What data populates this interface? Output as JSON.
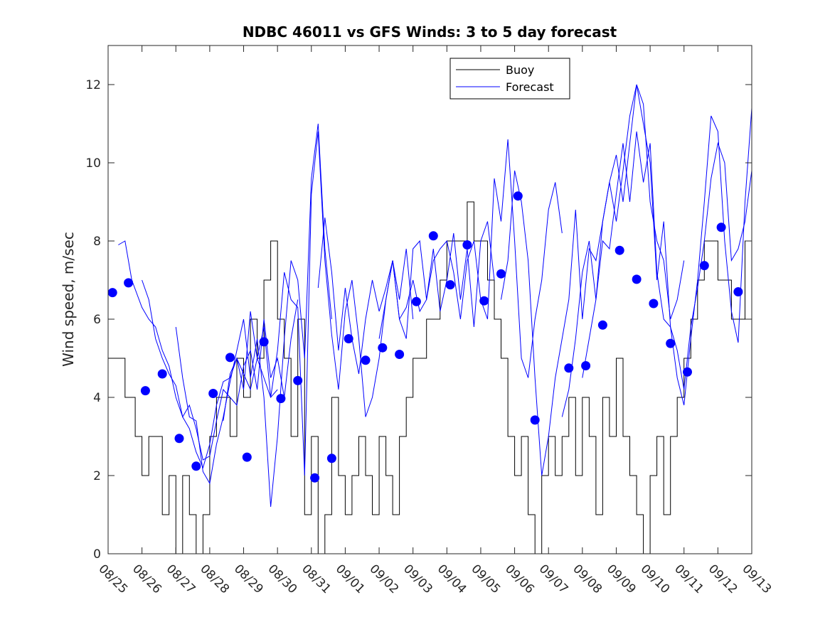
{
  "chart_data": {
    "type": "line",
    "title": "NDBC 46011 vs GFS Winds: 3 to 5 day forecast",
    "xlabel": "",
    "ylabel": "Wind speed, m/sec",
    "xlim": [
      0,
      19
    ],
    "ylim": [
      0,
      13
    ],
    "x_tick_labels": [
      "08/25",
      "08/26",
      "08/27",
      "08/28",
      "08/29",
      "08/30",
      "08/31",
      "09/01",
      "09/02",
      "09/03",
      "09/04",
      "09/05",
      "09/06",
      "09/07",
      "09/08",
      "09/09",
      "09/10",
      "09/11",
      "09/12",
      "09/13"
    ],
    "y_ticks": [
      0,
      2,
      4,
      6,
      8,
      10,
      12
    ],
    "legend": [
      {
        "label": "Buoy",
        "color": "#000000"
      },
      {
        "label": "Forecast",
        "color": "#0000ff"
      }
    ],
    "legend_position": "top",
    "buoy": {
      "name": "Buoy",
      "color": "#000000",
      "x": [
        0,
        0.3,
        0.5,
        0.8,
        1.0,
        1.2,
        1.4,
        1.6,
        1.8,
        2.0,
        2.2,
        2.4,
        2.6,
        2.8,
        3.0,
        3.2,
        3.4,
        3.6,
        3.8,
        4.0,
        4.2,
        4.4,
        4.6,
        4.8,
        5.0,
        5.2,
        5.4,
        5.6,
        5.8,
        6.0,
        6.2,
        6.4,
        6.6,
        6.8,
        7.0,
        7.2,
        7.4,
        7.6,
        7.8,
        8.0,
        8.2,
        8.4,
        8.6,
        8.8,
        9.0,
        9.2,
        9.4,
        9.6,
        9.8,
        10.0,
        10.2,
        10.4,
        10.6,
        10.8,
        11.0,
        11.2,
        11.4,
        11.6,
        11.8,
        12.0,
        12.2,
        12.4,
        12.6,
        12.8,
        13.0,
        13.2,
        13.4,
        13.6,
        13.8,
        14.0,
        14.2,
        14.4,
        14.6,
        14.8,
        15.0,
        15.2,
        15.4,
        15.6,
        15.8,
        16.0,
        16.2,
        16.4,
        16.6,
        16.8,
        17.0,
        17.2,
        17.4,
        17.6,
        17.8,
        18.0,
        18.2,
        18.4,
        18.6,
        18.8,
        19.0
      ],
      "values": [
        5,
        5,
        4,
        3,
        2,
        3,
        3,
        1,
        2,
        0,
        2,
        1,
        0,
        1,
        3,
        4,
        4,
        3,
        5,
        4,
        6,
        5,
        7,
        8,
        6,
        5,
        3,
        6,
        1,
        3,
        0,
        1,
        4,
        2,
        1,
        2,
        3,
        2,
        1,
        3,
        2,
        1,
        3,
        4,
        5,
        5,
        6,
        6,
        7,
        8,
        8,
        8,
        9,
        8,
        8,
        7,
        6,
        5,
        3,
        2,
        3,
        1,
        0,
        2,
        3,
        2,
        3,
        4,
        2,
        4,
        3,
        1,
        4,
        3,
        5,
        3,
        2,
        1,
        0,
        2,
        3,
        1,
        3,
        4,
        5,
        6,
        7,
        8,
        8,
        7,
        7,
        6,
        6,
        8,
        9
      ]
    },
    "forecast": {
      "name": "Forecast",
      "color": "#0000ff",
      "series": [
        {
          "x": [
            0.3,
            0.5,
            0.7,
            1.0,
            1.2,
            1.4,
            1.6,
            1.8,
            2.0,
            2.2,
            2.4,
            2.6,
            2.8,
            3.0,
            3.2,
            3.4,
            3.6,
            3.8,
            4.0,
            4.2,
            4.4,
            4.6,
            4.8,
            5.0
          ],
          "values": [
            7.9,
            8.0,
            7.0,
            6.3,
            6.0,
            5.8,
            5.2,
            4.8,
            4.0,
            3.5,
            3.2,
            2.6,
            2.2,
            2.8,
            3.8,
            4.4,
            4.5,
            5.0,
            4.6,
            4.2,
            5.0,
            4.5,
            4.0,
            4.2
          ]
        },
        {
          "x": [
            1.0,
            1.2,
            1.4,
            1.6,
            1.8,
            2.0,
            2.2,
            2.4,
            2.6,
            2.8,
            3.0,
            3.2,
            3.4,
            3.6,
            3.8,
            4.0,
            4.2,
            4.4,
            4.6,
            4.8,
            5.0,
            5.2,
            5.4,
            5.6
          ],
          "values": [
            7.0,
            6.5,
            5.5,
            5.0,
            4.6,
            4.3,
            3.5,
            3.8,
            3.2,
            2.4,
            2.5,
            3.4,
            4.2,
            4.0,
            3.8,
            4.8,
            5.2,
            4.2,
            6.0,
            4.5,
            5.0,
            4.0,
            5.5,
            6.5
          ]
        },
        {
          "x": [
            2.0,
            2.2,
            2.4,
            2.6,
            2.8,
            3.0,
            3.2,
            3.4,
            3.6,
            3.8,
            4.0,
            4.2,
            4.4,
            4.6,
            4.8,
            5.0,
            5.2,
            5.4,
            5.6,
            5.8,
            6.0,
            6.2,
            6.4,
            6.6
          ],
          "values": [
            5.8,
            4.5,
            3.5,
            3.4,
            2.1,
            1.8,
            2.8,
            3.5,
            4.4,
            5.2,
            6.0,
            4.5,
            5.5,
            4.0,
            1.2,
            3.0,
            5.5,
            7.5,
            7.0,
            5.0,
            9.6,
            11.0,
            7.8,
            6.0
          ]
        },
        {
          "x": [
            3.4,
            3.6,
            3.8,
            4.0,
            4.2,
            4.4,
            4.6,
            4.8,
            5.0,
            5.2,
            5.4,
            5.6,
            5.8,
            6.0,
            6.2,
            6.4,
            6.6,
            6.8,
            7.0,
            7.2,
            7.4,
            7.6,
            7.8,
            8.0,
            8.2,
            8.4,
            8.6,
            8.8,
            9.0
          ],
          "values": [
            3.4,
            4.6,
            5.0,
            4.2,
            6.2,
            5.0,
            5.8,
            4.0,
            5.2,
            7.2,
            6.5,
            6.3,
            2.0,
            9.2,
            10.8,
            7.5,
            5.6,
            4.2,
            6.2,
            7.0,
            5.5,
            3.5,
            4.0,
            5.0,
            6.5,
            7.5,
            6.5,
            7.8,
            6.0
          ]
        },
        {
          "x": [
            6.2,
            6.4,
            6.6,
            6.8,
            7.0,
            7.2,
            7.4,
            7.6,
            7.8,
            8.0,
            8.2,
            8.4,
            8.6,
            8.8,
            9.0,
            9.2,
            9.4,
            9.6,
            9.8,
            10.0,
            10.2,
            10.4,
            10.6,
            10.8,
            11.0,
            11.2,
            11.4
          ],
          "values": [
            6.8,
            8.6,
            7.2,
            5.2,
            6.8,
            5.5,
            4.6,
            6.0,
            7.0,
            6.2,
            6.8,
            7.5,
            6.0,
            5.5,
            7.8,
            8.0,
            6.5,
            7.8,
            6.2,
            7.0,
            8.2,
            6.5,
            7.8,
            5.8,
            8.0,
            8.5,
            7.0
          ]
        },
        {
          "x": [
            8.0,
            8.2,
            8.4,
            8.6,
            8.8,
            9.0,
            9.2,
            9.4,
            9.6,
            9.8,
            10.0,
            10.2,
            10.4,
            10.6,
            10.8,
            11.0,
            11.2,
            11.4,
            11.6,
            11.8,
            12.0,
            12.2,
            12.4,
            12.6,
            12.8,
            13.0,
            13.2,
            13.4
          ],
          "values": [
            5.5,
            6.5,
            7.5,
            6.0,
            6.3,
            7.0,
            6.2,
            6.5,
            7.5,
            7.8,
            8.0,
            7.2,
            6.0,
            7.5,
            8.0,
            6.5,
            6.0,
            9.6,
            8.5,
            10.6,
            8.0,
            5.0,
            4.5,
            6.0,
            7.0,
            8.8,
            9.5,
            8.2
          ]
        },
        {
          "x": [
            11.6,
            11.8,
            12.0,
            12.2,
            12.4,
            12.6,
            12.8,
            13.0,
            13.2,
            13.4,
            13.6,
            13.8,
            14.0,
            14.2,
            14.4,
            14.6,
            14.8,
            15.0,
            15.2,
            15.4,
            15.6,
            15.8,
            16.0,
            16.2,
            16.4,
            16.6,
            16.8,
            17.0
          ],
          "values": [
            6.5,
            7.5,
            9.8,
            9.0,
            7.5,
            4.5,
            2.0,
            3.0,
            4.5,
            5.5,
            6.5,
            8.8,
            6.0,
            7.8,
            7.5,
            8.5,
            9.5,
            10.2,
            9.0,
            10.5,
            12.0,
            11.5,
            9.0,
            8.0,
            7.5,
            6.0,
            6.5,
            7.5
          ]
        },
        {
          "x": [
            13.4,
            13.6,
            13.8,
            14.0,
            14.2,
            14.4,
            14.6,
            14.8,
            15.0,
            15.2,
            15.4,
            15.6,
            15.8,
            16.0,
            16.2,
            16.4,
            16.6,
            16.8,
            17.0,
            17.2,
            17.4,
            17.6,
            17.8,
            18.0,
            18.2,
            18.4,
            18.6,
            18.8,
            19.0
          ],
          "values": [
            3.5,
            4.2,
            5.5,
            7.2,
            8.0,
            6.5,
            8.5,
            9.5,
            8.5,
            9.8,
            11.2,
            12.0,
            11.0,
            10.0,
            7.0,
            8.5,
            5.8,
            4.5,
            3.8,
            5.5,
            7.0,
            9.0,
            11.2,
            10.8,
            8.0,
            6.2,
            5.4,
            9.0,
            11.4
          ]
        },
        {
          "x": [
            14.0,
            14.2,
            14.4,
            14.6,
            14.8,
            15.0,
            15.2,
            15.4,
            15.6,
            15.8,
            16.0,
            16.2,
            16.4,
            16.6,
            16.8,
            17.0,
            17.2,
            17.4,
            17.6,
            17.8,
            18.0,
            18.2,
            18.4,
            18.6,
            18.8,
            19.0
          ],
          "values": [
            4.5,
            5.5,
            6.5,
            8.0,
            7.8,
            9.2,
            10.5,
            9.0,
            10.8,
            9.5,
            10.5,
            7.2,
            6.0,
            5.8,
            5.2,
            4.2,
            5.8,
            6.8,
            8.0,
            9.6,
            10.5,
            10.0,
            7.5,
            7.8,
            8.5,
            9.8
          ]
        }
      ]
    },
    "forecast_points": {
      "name": "Forecast daily points",
      "color": "#0000ff",
      "x": [
        0.13,
        0.6,
        1.1,
        1.6,
        2.1,
        2.6,
        3.1,
        3.6,
        4.1,
        4.6,
        5.1,
        5.6,
        6.1,
        6.6,
        7.1,
        7.6,
        8.1,
        8.6,
        9.1,
        9.6,
        10.1,
        10.6,
        11.1,
        11.6,
        12.1,
        12.6,
        13.6,
        14.1,
        14.6,
        15.1,
        15.6,
        16.1,
        16.6,
        17.1,
        17.6,
        18.1,
        18.6
      ],
      "values": [
        6.68,
        6.93,
        4.17,
        4.6,
        2.95,
        2.24,
        4.1,
        5.02,
        2.47,
        5.42,
        3.97,
        4.43,
        1.94,
        2.44,
        5.5,
        4.95,
        5.27,
        5.1,
        6.45,
        8.13,
        6.88,
        7.9,
        6.47,
        7.16,
        9.15,
        3.42,
        4.75,
        4.81,
        5.85,
        7.76,
        7.02,
        6.4,
        5.38,
        4.65,
        7.37,
        8.35,
        6.7
      ]
    }
  }
}
